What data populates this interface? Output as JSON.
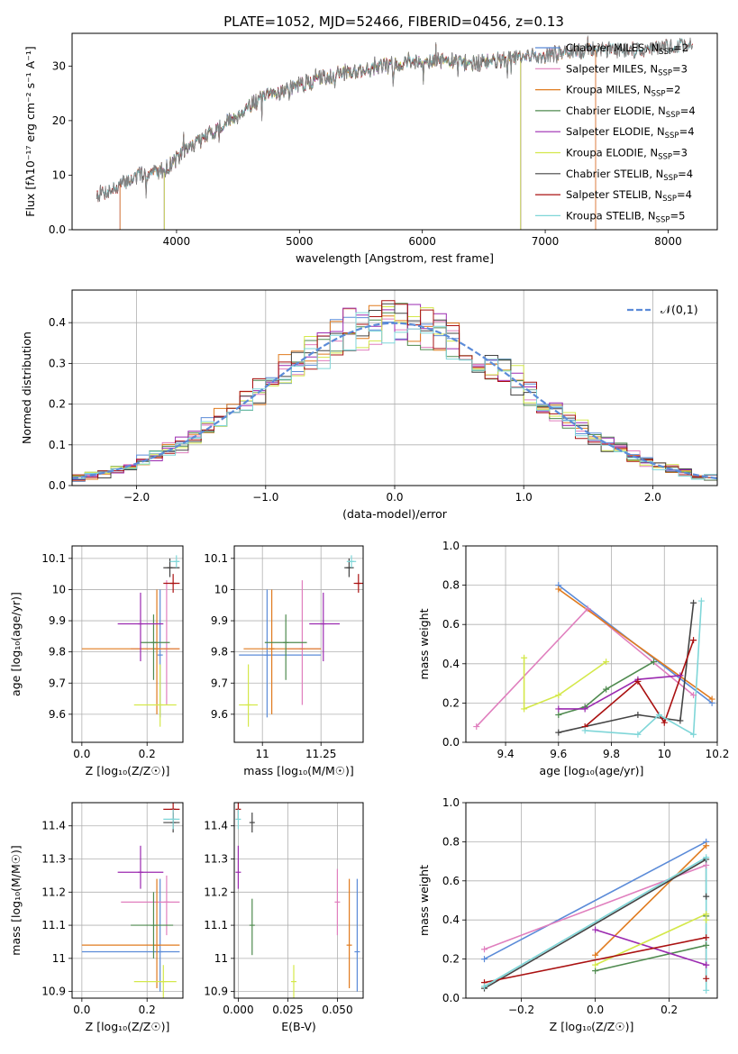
{
  "figure_title": "PLATE=1052, MJD=52466, FIBERID=0456, z=0.13",
  "colors": {
    "Chabrier MILES": "#5b8bd8",
    "Salpeter MILES": "#e07fbe",
    "Kroupa MILES": "#e07b1f",
    "Chabrier ELODIE": "#4f8a4f",
    "Salpeter ELODIE": "#9b2ab0",
    "Kroupa ELODIE": "#d4e84a",
    "Chabrier STELIB": "#444444",
    "Salpeter STELIB": "#aa1111",
    "Kroupa STELIB": "#7fd6d8",
    "data": "#808080",
    "normal": "#5b8bd8"
  },
  "chart_data": [
    {
      "id": "spectrum",
      "type": "line",
      "xlabel": "wavelength [Angstrom, rest frame]",
      "ylabel": "Flux [fλ10⁻¹⁷ erg cm⁻² s⁻¹ A⁻¹]",
      "xlim": [
        3150,
        8400
      ],
      "ylim": [
        0,
        36
      ],
      "xticks": [
        4000,
        5000,
        6000,
        7000,
        8000
      ],
      "yticks": [
        0,
        10,
        20,
        30
      ],
      "grid": false,
      "legend_position": "top-right",
      "legend": [
        {
          "label": "Chabrier MILES",
          "nssp": "2"
        },
        {
          "label": "Salpeter MILES",
          "nssp": "3"
        },
        {
          "label": "Kroupa MILES",
          "nssp": "2"
        },
        {
          "label": "Chabrier ELODIE",
          "nssp": "4"
        },
        {
          "label": "Salpeter ELODIE",
          "nssp": "4"
        },
        {
          "label": "Kroupa ELODIE",
          "nssp": "3"
        },
        {
          "label": "Chabrier STELIB",
          "nssp": "4"
        },
        {
          "label": "Salpeter STELIB",
          "nssp": "4"
        },
        {
          "label": "Kroupa STELIB",
          "nssp": "5"
        }
      ],
      "continuum": {
        "x": [
          3350,
          3500,
          3600,
          3700,
          3800,
          3900,
          4000,
          4100,
          4200,
          4300,
          4400,
          4500,
          4600,
          4800,
          5000,
          5200,
          5400,
          5600,
          5800,
          6000,
          6200,
          6400,
          6600,
          6800,
          7000,
          7200,
          7400,
          7600,
          7800,
          8000,
          8200
        ],
        "y": [
          6.5,
          7.5,
          9,
          10,
          10.5,
          11,
          13,
          15,
          16.5,
          18,
          19.5,
          21,
          23,
          25,
          26.5,
          28,
          29,
          29.5,
          30.5,
          31,
          31,
          30.5,
          31,
          31.5,
          32,
          32.5,
          33,
          33,
          33,
          33.5,
          34
        ]
      },
      "model_ranges": [
        {
          "model": "Chabrier MILES",
          "xmin": 3540,
          "xmax": 7410
        },
        {
          "model": "Salpeter MILES",
          "xmin": 3540,
          "xmax": 7410
        },
        {
          "model": "Kroupa MILES",
          "xmin": 3540,
          "xmax": 7410
        },
        {
          "model": "Chabrier ELODIE",
          "xmin": 3900,
          "xmax": 6800
        },
        {
          "model": "Salpeter ELODIE",
          "xmin": 3900,
          "xmax": 6800
        },
        {
          "model": "Kroupa ELODIE",
          "xmin": 3900,
          "xmax": 6800
        },
        {
          "model": "Chabrier STELIB",
          "xmin": 3350,
          "xmax": 8200
        },
        {
          "model": "Salpeter STELIB",
          "xmin": 3350,
          "xmax": 8200
        },
        {
          "model": "Kroupa STELIB",
          "xmin": 3350,
          "xmax": 8200
        }
      ]
    },
    {
      "id": "residuals",
      "type": "line",
      "xlabel": "(data-model)/error",
      "ylabel": "Normed distribution",
      "xlim": [
        -2.5,
        2.5
      ],
      "ylim": [
        0,
        0.48
      ],
      "xticks": [
        -2,
        -1,
        0,
        1,
        2
      ],
      "yticks": [
        0.0,
        0.1,
        0.2,
        0.3,
        0.4
      ],
      "grid": true,
      "legend_position": "top-right",
      "legend": "𝒩(0,1)",
      "bin_width": 0.1
    },
    {
      "id": "age_vs_Z",
      "type": "scatter",
      "xlabel": "Z [log₁₀(Z/Z☉)]",
      "ylabel": "age  [log₁₀(age/yr)]",
      "xlim": [
        -0.03,
        0.31
      ],
      "ylim": [
        9.51,
        10.14
      ],
      "xticks": [
        0.0,
        0.2
      ],
      "yticks": [
        9.6,
        9.7,
        9.8,
        9.9,
        10.0,
        10.1
      ],
      "grid": true,
      "points": [
        {
          "model": "Chabrier MILES",
          "x": 0.24,
          "y": 9.79,
          "xerr": [
            0.3,
            0.3
          ],
          "yerr": [
            9.59,
            10.0
          ]
        },
        {
          "model": "Salpeter MILES",
          "x": 0.26,
          "y": 9.81,
          "xerr": [
            0.15,
            0.3
          ],
          "yerr": [
            9.63,
            10.03
          ]
        },
        {
          "model": "Kroupa MILES",
          "x": 0.23,
          "y": 9.81,
          "xerr": [
            0.0,
            0.3
          ],
          "yerr": [
            9.6,
            10.0
          ]
        },
        {
          "model": "Chabrier ELODIE",
          "x": 0.22,
          "y": 9.83,
          "xerr": [
            0.18,
            0.27
          ],
          "yerr": [
            9.71,
            9.92
          ]
        },
        {
          "model": "Salpeter ELODIE",
          "x": 0.18,
          "y": 9.89,
          "xerr": [
            0.11,
            0.25
          ],
          "yerr": [
            9.77,
            9.99
          ]
        },
        {
          "model": "Kroupa ELODIE",
          "x": 0.24,
          "y": 9.63,
          "xerr": [
            0.16,
            0.29
          ],
          "yerr": [
            9.56,
            9.76
          ]
        },
        {
          "model": "Chabrier STELIB",
          "x": 0.27,
          "y": 10.07,
          "xerr": [
            0.25,
            0.3
          ],
          "yerr": [
            10.04,
            10.1
          ]
        },
        {
          "model": "Salpeter STELIB",
          "x": 0.28,
          "y": 10.02,
          "xerr": [
            0.25,
            0.3
          ],
          "yerr": [
            9.99,
            10.05
          ]
        },
        {
          "model": "Kroupa STELIB",
          "x": 0.29,
          "y": 10.09,
          "xerr": [
            0.27,
            0.3
          ],
          "yerr": [
            10.07,
            10.11
          ]
        }
      ]
    },
    {
      "id": "age_vs_mass",
      "type": "scatter",
      "xlabel": "mass [log₁₀(M/M☉)]",
      "ylabel": "",
      "xlim": [
        10.88,
        11.43
      ],
      "ylim": [
        9.51,
        10.14
      ],
      "xticks": [
        11.0,
        11.25
      ],
      "yticks": [
        9.6,
        9.7,
        9.8,
        9.9,
        10.0,
        10.1
      ],
      "grid": true,
      "points": [
        {
          "model": "Chabrier MILES",
          "x": 11.02,
          "y": 9.79,
          "xerr": [
            10.9,
            11.25
          ],
          "yerr": [
            9.59,
            10.0
          ]
        },
        {
          "model": "Salpeter MILES",
          "x": 11.17,
          "y": 9.81,
          "xerr": [
            11.1,
            11.25
          ],
          "yerr": [
            9.63,
            10.03
          ]
        },
        {
          "model": "Kroupa MILES",
          "x": 11.04,
          "y": 9.81,
          "xerr": [
            10.92,
            11.25
          ],
          "yerr": [
            9.6,
            10.0
          ]
        },
        {
          "model": "Chabrier ELODIE",
          "x": 11.1,
          "y": 9.83,
          "xerr": [
            11.01,
            11.19
          ],
          "yerr": [
            9.71,
            9.92
          ]
        },
        {
          "model": "Salpeter ELODIE",
          "x": 11.26,
          "y": 9.89,
          "xerr": [
            11.2,
            11.33
          ],
          "yerr": [
            9.77,
            9.99
          ]
        },
        {
          "model": "Kroupa ELODIE",
          "x": 10.94,
          "y": 9.63,
          "xerr": [
            10.9,
            10.98
          ],
          "yerr": [
            9.56,
            9.76
          ]
        },
        {
          "model": "Chabrier STELIB",
          "x": 11.37,
          "y": 10.07,
          "xerr": [
            11.35,
            11.39
          ],
          "yerr": [
            10.04,
            10.1
          ]
        },
        {
          "model": "Salpeter STELIB",
          "x": 11.41,
          "y": 10.02,
          "xerr": [
            11.39,
            11.43
          ],
          "yerr": [
            9.99,
            10.05
          ]
        },
        {
          "model": "Kroupa STELIB",
          "x": 11.38,
          "y": 10.09,
          "xerr": [
            11.36,
            11.4
          ],
          "yerr": [
            10.07,
            10.11
          ]
        }
      ]
    },
    {
      "id": "mass_weight_vs_age",
      "type": "line",
      "xlabel": "age  [log₁₀(age/yr)]",
      "ylabel": "mass weight",
      "xlim": [
        9.25,
        10.2
      ],
      "ylim": [
        0,
        1
      ],
      "xticks": [
        9.4,
        9.6,
        9.8,
        10.0,
        10.2
      ],
      "yticks": [
        0.0,
        0.2,
        0.4,
        0.6,
        0.8,
        1.0
      ],
      "grid": true,
      "series": [
        {
          "model": "Chabrier MILES",
          "x": [
            9.6,
            10.18
          ],
          "y": [
            0.8,
            0.2
          ]
        },
        {
          "model": "Salpeter MILES",
          "x": [
            9.29,
            9.71,
            10.11
          ],
          "y": [
            0.08,
            0.68,
            0.24
          ]
        },
        {
          "model": "Kroupa MILES",
          "x": [
            9.6,
            10.18
          ],
          "y": [
            0.78,
            0.22
          ]
        },
        {
          "model": "Chabrier ELODIE",
          "x": [
            9.6,
            9.7,
            9.78,
            9.96
          ],
          "y": [
            0.14,
            0.18,
            0.27,
            0.41
          ]
        },
        {
          "model": "Salpeter ELODIE",
          "x": [
            9.6,
            9.7,
            9.9,
            10.06
          ],
          "y": [
            0.17,
            0.17,
            0.32,
            0.34
          ]
        },
        {
          "model": "Kroupa ELODIE",
          "x": [
            9.47,
            9.47,
            9.6,
            9.78
          ],
          "y": [
            0.43,
            0.17,
            0.24,
            0.41
          ]
        },
        {
          "model": "Chabrier STELIB",
          "x": [
            9.6,
            9.9,
            10.06,
            10.11
          ],
          "y": [
            0.05,
            0.14,
            0.11,
            0.71
          ]
        },
        {
          "model": "Salpeter STELIB",
          "x": [
            9.7,
            9.9,
            10.0,
            10.11
          ],
          "y": [
            0.08,
            0.31,
            0.1,
            0.52
          ]
        },
        {
          "model": "Kroupa STELIB",
          "x": [
            9.7,
            9.9,
            9.98,
            10.11,
            10.14
          ],
          "y": [
            0.06,
            0.04,
            0.14,
            0.04,
            0.72
          ]
        }
      ]
    },
    {
      "id": "mass_vs_Z",
      "type": "scatter",
      "xlabel": "Z [log₁₀(Z/Z☉)]",
      "ylabel": "mass [log₁₀(M/M☉)]",
      "xlim": [
        -0.03,
        0.31
      ],
      "ylim": [
        10.88,
        11.47
      ],
      "xticks": [
        0.0,
        0.2
      ],
      "yticks": [
        10.9,
        11.0,
        11.1,
        11.2,
        11.3,
        11.4
      ],
      "grid": true,
      "points": [
        {
          "model": "Chabrier MILES",
          "x": 0.24,
          "y": 11.02,
          "xerr": [
            0.0,
            0.3
          ],
          "yerr": [
            10.9,
            11.24
          ]
        },
        {
          "model": "Salpeter MILES",
          "x": 0.26,
          "y": 11.17,
          "xerr": [
            0.12,
            0.3
          ],
          "yerr": [
            11.07,
            11.25
          ]
        },
        {
          "model": "Kroupa MILES",
          "x": 0.23,
          "y": 11.04,
          "xerr": [
            0.0,
            0.3
          ],
          "yerr": [
            10.91,
            11.24
          ]
        },
        {
          "model": "Chabrier ELODIE",
          "x": 0.22,
          "y": 11.1,
          "xerr": [
            0.15,
            0.28
          ],
          "yerr": [
            11.0,
            11.2
          ]
        },
        {
          "model": "Salpeter ELODIE",
          "x": 0.18,
          "y": 11.26,
          "xerr": [
            0.11,
            0.25
          ],
          "yerr": [
            11.21,
            11.34
          ]
        },
        {
          "model": "Kroupa ELODIE",
          "x": 0.25,
          "y": 10.93,
          "xerr": [
            0.16,
            0.29
          ],
          "yerr": [
            10.88,
            10.98
          ]
        },
        {
          "model": "Chabrier STELIB",
          "x": 0.28,
          "y": 11.41,
          "xerr": [
            0.25,
            0.3
          ],
          "yerr": [
            11.38,
            11.44
          ]
        },
        {
          "model": "Salpeter STELIB",
          "x": 0.28,
          "y": 11.45,
          "xerr": [
            0.25,
            0.3
          ],
          "yerr": [
            11.42,
            11.47
          ]
        },
        {
          "model": "Kroupa STELIB",
          "x": 0.28,
          "y": 11.42,
          "xerr": [
            0.25,
            0.3
          ],
          "yerr": [
            11.39,
            11.45
          ]
        }
      ]
    },
    {
      "id": "mass_vs_ebv",
      "type": "scatter",
      "xlabel": "E(B-V)",
      "ylabel": "",
      "xlim": [
        -0.002,
        0.063
      ],
      "ylim": [
        10.88,
        11.47
      ],
      "xticks": [
        0.0,
        0.025,
        0.05
      ],
      "xticklabels": [
        "0.000",
        "0.025",
        "0.050"
      ],
      "yticks": [
        10.9,
        11.0,
        11.1,
        11.2,
        11.3,
        11.4
      ],
      "grid": true,
      "points": [
        {
          "model": "Chabrier MILES",
          "x": 0.06,
          "y": 11.02,
          "yerr": [
            10.9,
            11.24
          ]
        },
        {
          "model": "Salpeter MILES",
          "x": 0.05,
          "y": 11.17,
          "yerr": [
            11.07,
            11.27
          ]
        },
        {
          "model": "Kroupa MILES",
          "x": 0.056,
          "y": 11.04,
          "yerr": [
            10.91,
            11.24
          ]
        },
        {
          "model": "Chabrier ELODIE",
          "x": 0.007,
          "y": 11.1,
          "yerr": [
            11.01,
            11.18
          ]
        },
        {
          "model": "Salpeter ELODIE",
          "x": 0.0,
          "y": 11.26,
          "yerr": [
            11.21,
            11.34
          ]
        },
        {
          "model": "Kroupa ELODIE",
          "x": 0.028,
          "y": 10.93,
          "yerr": [
            10.88,
            10.98
          ]
        },
        {
          "model": "Chabrier STELIB",
          "x": 0.007,
          "y": 11.41,
          "yerr": [
            11.38,
            11.44
          ]
        },
        {
          "model": "Salpeter STELIB",
          "x": 0.0,
          "y": 11.45,
          "yerr": [
            11.42,
            11.47
          ]
        },
        {
          "model": "Kroupa STELIB",
          "x": 0.0,
          "y": 11.42,
          "yerr": [
            11.39,
            11.45
          ]
        }
      ]
    },
    {
      "id": "mass_weight_vs_Z",
      "type": "line",
      "xlabel": "Z [log₁₀(Z/Z☉)]",
      "ylabel": "mass weight",
      "xlim": [
        -0.35,
        0.33
      ],
      "ylim": [
        0,
        1
      ],
      "xticks": [
        -0.2,
        0.0,
        0.2
      ],
      "yticks": [
        0.0,
        0.2,
        0.4,
        0.6,
        0.8,
        1.0
      ],
      "grid": true,
      "series": [
        {
          "model": "Chabrier MILES",
          "x": [
            -0.3,
            0.3
          ],
          "y": [
            0.2,
            0.8
          ]
        },
        {
          "model": "Salpeter MILES",
          "x": [
            -0.3,
            0.3
          ],
          "y": [
            0.25,
            0.68
          ]
        },
        {
          "model": "Kroupa MILES",
          "x": [
            0.0,
            0.3
          ],
          "y": [
            0.22,
            0.78
          ]
        },
        {
          "model": "Chabrier ELODIE",
          "x": [
            0.0,
            0.3,
            0.3
          ],
          "y": [
            0.14,
            0.27,
            0.42
          ]
        },
        {
          "model": "Salpeter ELODIE",
          "x": [
            0.0,
            0.3,
            0.3
          ],
          "y": [
            0.35,
            0.17,
            0.17
          ]
        },
        {
          "model": "Kroupa ELODIE",
          "x": [
            0.0,
            0.3,
            0.3
          ],
          "y": [
            0.17,
            0.43,
            0.4
          ]
        },
        {
          "model": "Chabrier STELIB",
          "x": [
            -0.3,
            0.3,
            0.3
          ],
          "y": [
            0.05,
            0.71,
            0.52
          ]
        },
        {
          "model": "Salpeter STELIB",
          "x": [
            -0.3,
            0.3,
            0.3
          ],
          "y": [
            0.08,
            0.31,
            0.1
          ]
        },
        {
          "model": "Kroupa STELIB",
          "x": [
            -0.3,
            0.3,
            0.3
          ],
          "y": [
            0.06,
            0.72,
            0.04
          ]
        }
      ]
    }
  ]
}
